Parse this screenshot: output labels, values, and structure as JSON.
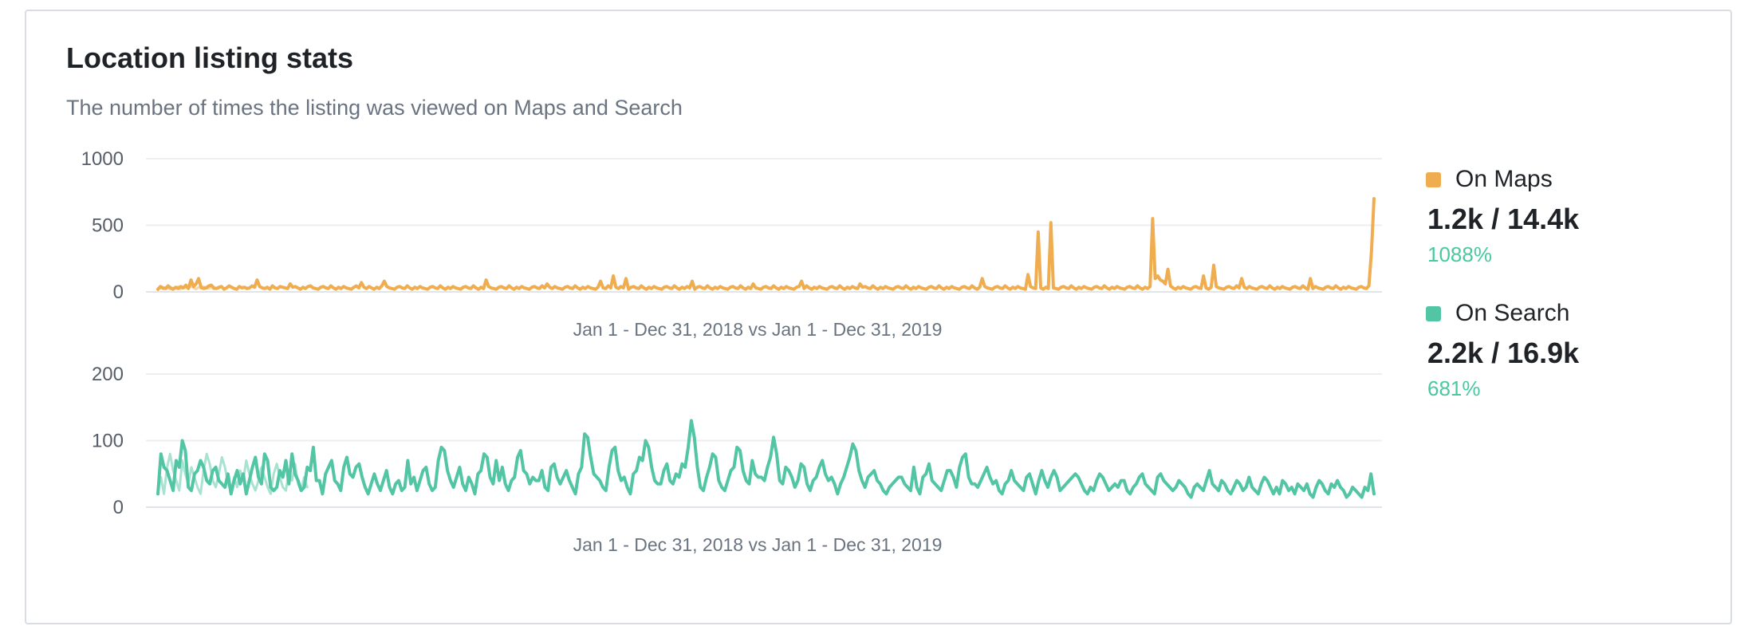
{
  "card": {
    "title": "Location listing stats",
    "subtitle": "The number of times the listing was viewed on Maps and Search"
  },
  "legend": [
    {
      "name": "On Maps",
      "value": "1.2k / 14.4k",
      "change": "1088%",
      "color": "#efad4f",
      "change_color": "#48c9a0"
    },
    {
      "name": "On Search",
      "value": "2.2k / 16.9k",
      "change": "681%",
      "color": "#52c5a4",
      "change_color": "#48c9a0"
    }
  ],
  "chart_data": [
    {
      "type": "line",
      "series_name": "On Maps",
      "date_range": "Jan 1 - Dec 31, 2018 vs Jan 1 - Dec 31, 2019",
      "ylim": [
        0,
        1000
      ],
      "yticks": [
        "1000",
        "500",
        "0"
      ],
      "grid": true,
      "color": "#efad4f",
      "compare_color": "#f6d6a6",
      "series": [
        {
          "name": "2019",
          "values": [
            20,
            40,
            30,
            25,
            45,
            30,
            20,
            35,
            25,
            40,
            30,
            50,
            25,
            90,
            40,
            60,
            100,
            35,
            25,
            30,
            45,
            50,
            30,
            25,
            35,
            40,
            20,
            30,
            45,
            35,
            25,
            20,
            40,
            30,
            35,
            25,
            30,
            45,
            35,
            90,
            40,
            30,
            25,
            35,
            20,
            45,
            30,
            25,
            40,
            35,
            30,
            25,
            60,
            35,
            40,
            30,
            20,
            35,
            25,
            40,
            45,
            30,
            25,
            20,
            35,
            40,
            30,
            25,
            45,
            30,
            20,
            35,
            25,
            40,
            30,
            25,
            20,
            35,
            45,
            30,
            70,
            35,
            25,
            40,
            30,
            20,
            35,
            25,
            45,
            80,
            40,
            30,
            25,
            20,
            35,
            40,
            30,
            25,
            45,
            30,
            20,
            35,
            25,
            40,
            30,
            25,
            20,
            35,
            40,
            30,
            25,
            45,
            30,
            20,
            35,
            25,
            40,
            30,
            25,
            20,
            35,
            40,
            30,
            25,
            45,
            30,
            20,
            35,
            25,
            90,
            40,
            30,
            25,
            20,
            35,
            40,
            30,
            25,
            45,
            30,
            20,
            35,
            25,
            40,
            30,
            25,
            20,
            35,
            40,
            30,
            25,
            45,
            30,
            60,
            35,
            25,
            40,
            30,
            25,
            20,
            35,
            40,
            30,
            25,
            45,
            30,
            20,
            35,
            25,
            40,
            30,
            25,
            20,
            35,
            80,
            30,
            25,
            45,
            30,
            120,
            35,
            25,
            40,
            30,
            100,
            20,
            35,
            40,
            30,
            25,
            45,
            30,
            20,
            35,
            25,
            40,
            30,
            25,
            20,
            35,
            40,
            30,
            25,
            45,
            30,
            20,
            35,
            25,
            40,
            30,
            80,
            20,
            35,
            40,
            30,
            25,
            45,
            30,
            20,
            35,
            25,
            40,
            30,
            25,
            20,
            35,
            40,
            30,
            25,
            45,
            30,
            20,
            35,
            25,
            60,
            30,
            25,
            20,
            35,
            40,
            30,
            25,
            45,
            30,
            20,
            35,
            25,
            40,
            30,
            25,
            20,
            35,
            40,
            80,
            25,
            45,
            30,
            20,
            35,
            25,
            40,
            30,
            25,
            20,
            35,
            40,
            30,
            25,
            45,
            30,
            20,
            35,
            25,
            40,
            30,
            25,
            60,
            35,
            40,
            30,
            25,
            45,
            30,
            20,
            35,
            25,
            40,
            30,
            25,
            20,
            35,
            40,
            30,
            25,
            45,
            30,
            20,
            35,
            25,
            40,
            30,
            25,
            20,
            35,
            40,
            30,
            25,
            45,
            30,
            20,
            35,
            25,
            40,
            30,
            25,
            20,
            35,
            40,
            30,
            25,
            45,
            30,
            20,
            35,
            100,
            40,
            30,
            25,
            20,
            35,
            40,
            30,
            25,
            45,
            30,
            20,
            35,
            25,
            40,
            30,
            25,
            20,
            130,
            40,
            30,
            25,
            450,
            30,
            20,
            35,
            25,
            520,
            30,
            25,
            20,
            35,
            40,
            30,
            25,
            45,
            30,
            20,
            35,
            25,
            40,
            30,
            25,
            20,
            35,
            40,
            30,
            25,
            45,
            30,
            20,
            35,
            25,
            40,
            30,
            25,
            20,
            35,
            40,
            30,
            25,
            45,
            30,
            20,
            35,
            25,
            40,
            550,
            100,
            120,
            90,
            80,
            60,
            170,
            45,
            30,
            20,
            35,
            25,
            40,
            30,
            25,
            20,
            35,
            40,
            30,
            25,
            120,
            30,
            20,
            35,
            200,
            40,
            30,
            25,
            20,
            35,
            40,
            30,
            25,
            45,
            30,
            100,
            35,
            25,
            40,
            30,
            25,
            20,
            35,
            40,
            30,
            25,
            45,
            30,
            20,
            35,
            25,
            40,
            30,
            25,
            20,
            35,
            40,
            30,
            25,
            45,
            30,
            20,
            100,
            25,
            40,
            30,
            25,
            20,
            35,
            40,
            30,
            25,
            45,
            30,
            20,
            35,
            25,
            40,
            30,
            25,
            20,
            35,
            40,
            30,
            25,
            45,
            300,
            700
          ]
        },
        {
          "name": "2018",
          "values": [
            15,
            30,
            20,
            35,
            25,
            20,
            30,
            25,
            40,
            20,
            35,
            30,
            25,
            45,
            30,
            20,
            35,
            25,
            40,
            30,
            25,
            35,
            20,
            30,
            25
          ]
        }
      ]
    },
    {
      "type": "line",
      "series_name": "On Search",
      "date_range": "Jan 1 - Dec 31, 2018 vs Jan 1 - Dec 31, 2019",
      "ylim": [
        0,
        200
      ],
      "yticks": [
        "200",
        "100",
        "0"
      ],
      "grid": true,
      "color": "#52c5a4",
      "compare_color": "#a9e2d1",
      "series": [
        {
          "name": "2019",
          "values": [
            20,
            80,
            60,
            55,
            40,
            25,
            70,
            60,
            100,
            85,
            30,
            25,
            50,
            55,
            70,
            60,
            40,
            35,
            55,
            60,
            40,
            35,
            30,
            50,
            20,
            40,
            55,
            35,
            50,
            20,
            40,
            60,
            75,
            45,
            35,
            80,
            70,
            30,
            25,
            30,
            55,
            45,
            70,
            35,
            80,
            50,
            40,
            25,
            30,
            60,
            55,
            90,
            40,
            40,
            20,
            50,
            60,
            70,
            40,
            35,
            25,
            60,
            75,
            50,
            45,
            60,
            65,
            45,
            30,
            20,
            35,
            50,
            35,
            25,
            40,
            55,
            30,
            20,
            35,
            40,
            25,
            30,
            70,
            35,
            45,
            25,
            40,
            55,
            60,
            35,
            25,
            30,
            70,
            90,
            85,
            55,
            40,
            30,
            45,
            60,
            35,
            25,
            45,
            35,
            20,
            50,
            55,
            80,
            75,
            45,
            35,
            70,
            40,
            60,
            35,
            25,
            40,
            45,
            75,
            85,
            55,
            50,
            35,
            45,
            40,
            40,
            55,
            30,
            25,
            60,
            65,
            45,
            35,
            45,
            55,
            40,
            30,
            20,
            50,
            60,
            110,
            105,
            75,
            50,
            45,
            40,
            30,
            25,
            60,
            85,
            90,
            55,
            40,
            45,
            30,
            20,
            50,
            55,
            75,
            70,
            100,
            90,
            60,
            40,
            35,
            35,
            55,
            65,
            40,
            35,
            50,
            45,
            65,
            60,
            90,
            130,
            105,
            60,
            30,
            25,
            45,
            60,
            80,
            75,
            40,
            30,
            25,
            40,
            55,
            60,
            90,
            85,
            55,
            40,
            35,
            70,
            50,
            45,
            45,
            40,
            60,
            75,
            105,
            80,
            40,
            35,
            60,
            55,
            45,
            30,
            40,
            65,
            60,
            35,
            25,
            40,
            45,
            60,
            70,
            50,
            40,
            45,
            35,
            20,
            35,
            45,
            60,
            75,
            95,
            85,
            55,
            40,
            30,
            45,
            50,
            55,
            40,
            35,
            25,
            20,
            30,
            35,
            40,
            45,
            45,
            35,
            30,
            25,
            60,
            30,
            20,
            45,
            50,
            65,
            40,
            35,
            30,
            25,
            40,
            55,
            55,
            45,
            30,
            60,
            75,
            80,
            45,
            35,
            35,
            30,
            40,
            50,
            60,
            45,
            35,
            40,
            25,
            20,
            35,
            40,
            55,
            40,
            35,
            30,
            25,
            45,
            50,
            35,
            20,
            40,
            55,
            40,
            30,
            45,
            55,
            45,
            25,
            30,
            35,
            40,
            45,
            50,
            45,
            35,
            25,
            20,
            30,
            25,
            40,
            50,
            45,
            35,
            25,
            30,
            35,
            30,
            40,
            40,
            25,
            20,
            30,
            35,
            45,
            50,
            35,
            30,
            25,
            20,
            45,
            50,
            40,
            35,
            30,
            25,
            30,
            40,
            35,
            30,
            20,
            15,
            30,
            35,
            30,
            25,
            40,
            55,
            35,
            30,
            25,
            40,
            35,
            25,
            20,
            30,
            40,
            35,
            25,
            30,
            45,
            30,
            25,
            20,
            35,
            45,
            40,
            30,
            20,
            30,
            20,
            40,
            35,
            25,
            30,
            20,
            35,
            30,
            25,
            35,
            20,
            15,
            30,
            40,
            35,
            25,
            20,
            35,
            30,
            40,
            30,
            25,
            15,
            20,
            30,
            25,
            20,
            15,
            30,
            25,
            50,
            20
          ]
        },
        {
          "name": "2018",
          "values": [
            25,
            45,
            20,
            60,
            80,
            55,
            40,
            25,
            70,
            50,
            35,
            60,
            45,
            30,
            20,
            55,
            80,
            65,
            40,
            30,
            50,
            75,
            60,
            35,
            25,
            45,
            30,
            55,
            40,
            70,
            50,
            35,
            25,
            40,
            60,
            45,
            30,
            20,
            50,
            65,
            45,
            30,
            25,
            55,
            40,
            65,
            35,
            25,
            45,
            30
          ]
        }
      ]
    }
  ]
}
